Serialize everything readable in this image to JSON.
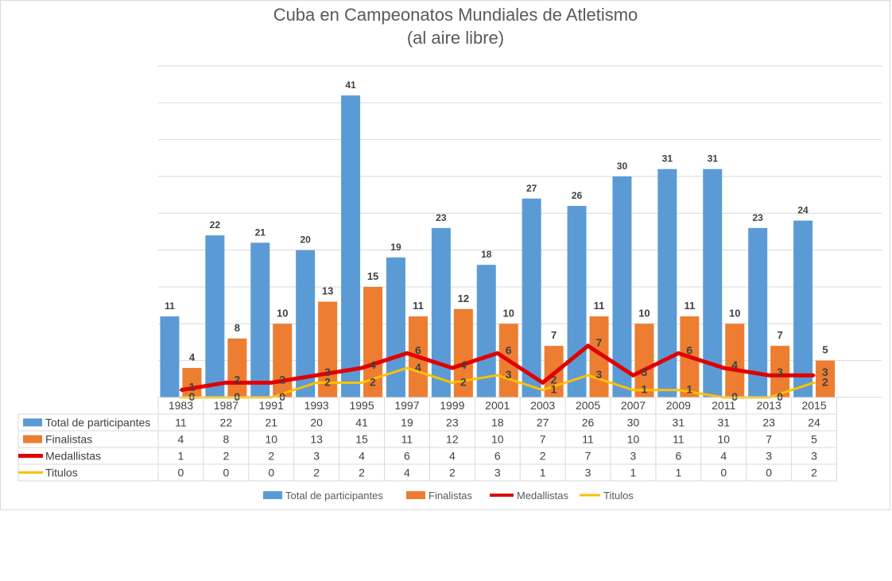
{
  "chart_data": {
    "type": "bar",
    "title": "Cuba en Campeonatos Mundiales de Atletismo",
    "subtitle": "(al aire libre)",
    "categories": [
      "1983",
      "1987",
      "1991",
      "1993",
      "1995",
      "1997",
      "1999",
      "2001",
      "2003",
      "2005",
      "2007",
      "2009",
      "2011",
      "2013",
      "2015"
    ],
    "ylim": [
      0,
      45
    ],
    "grid": true,
    "legend_position": "bottom",
    "series": [
      {
        "name": "Total de participantes",
        "kind": "bar",
        "color": "#5b9bd5",
        "values": [
          11,
          22,
          21,
          20,
          41,
          19,
          23,
          18,
          27,
          26,
          30,
          31,
          31,
          23,
          24
        ]
      },
      {
        "name": "Finalistas",
        "kind": "bar",
        "color": "#ed7d31",
        "values": [
          4,
          8,
          10,
          13,
          15,
          11,
          12,
          10,
          7,
          11,
          10,
          11,
          10,
          7,
          5
        ]
      },
      {
        "name": "Medallistas",
        "kind": "line",
        "color": "#e00000",
        "values": [
          1,
          2,
          2,
          3,
          4,
          6,
          4,
          6,
          2,
          7,
          3,
          6,
          4,
          3,
          3
        ]
      },
      {
        "name": "Titulos",
        "kind": "line",
        "color": "#ffc000",
        "values": [
          0,
          0,
          0,
          2,
          2,
          4,
          2,
          3,
          1,
          3,
          1,
          1,
          0,
          0,
          2
        ]
      }
    ]
  }
}
